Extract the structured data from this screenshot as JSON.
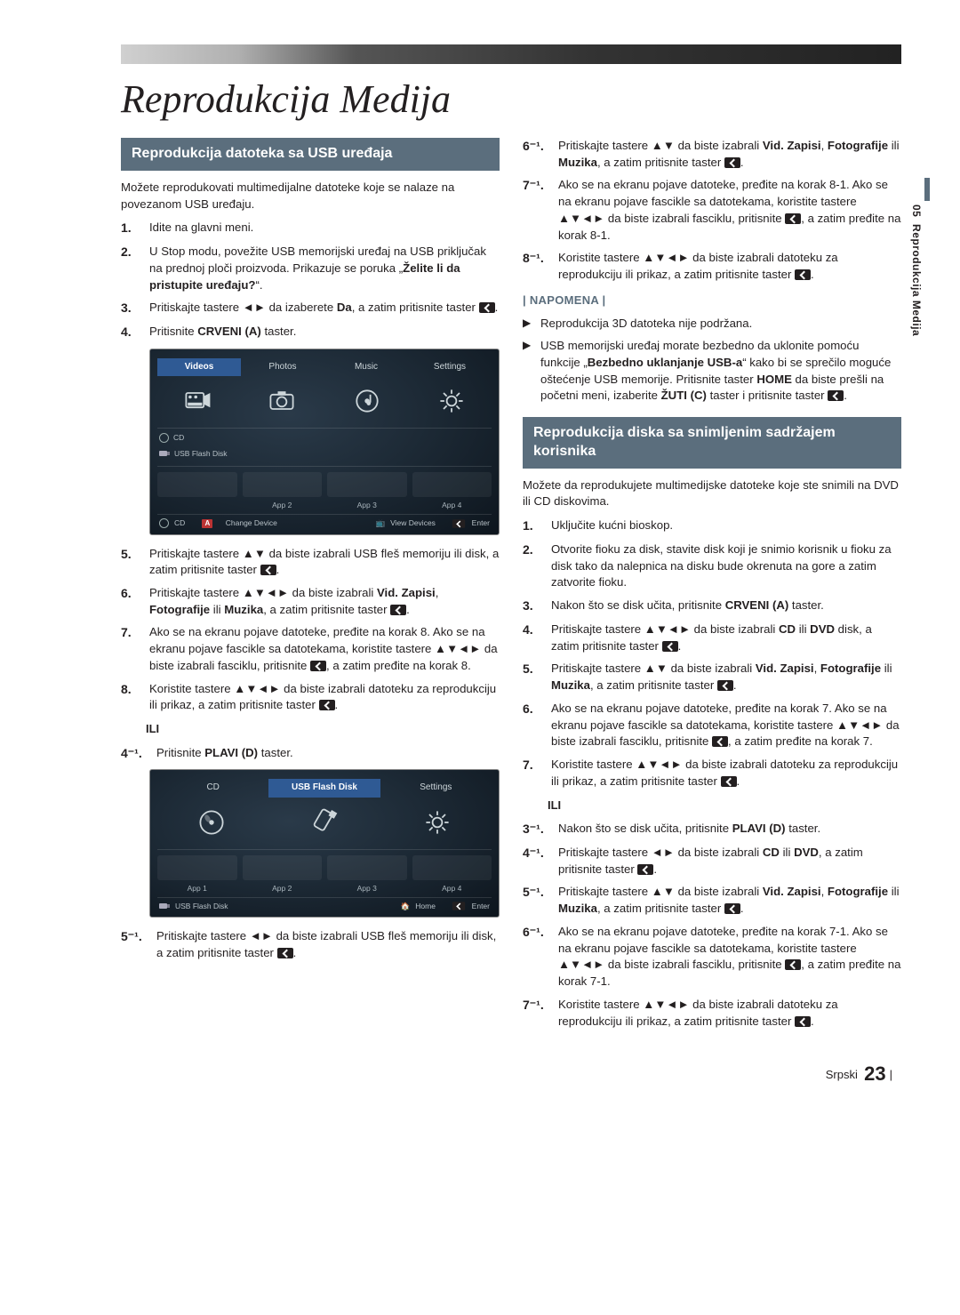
{
  "chapter_side": {
    "num": "05",
    "label": "Reprodukcija Medija"
  },
  "title": "Reprodukcija Medija",
  "footer": {
    "lang": "Srpski",
    "page": "23"
  },
  "sub1": {
    "heading": "Reprodukcija datoteka sa USB uređaja",
    "intro": "Možete reprodukovati multimedijalne datoteke koje se nalaze na povezanom USB uređaju.",
    "steps_a": [
      {
        "n": "1.",
        "t": "Idite na glavni meni."
      },
      {
        "n": "2.",
        "t_html": "U Stop modu, povežite USB memorijski uređaj na USB priključak na prednoj ploči proizvoda. Prikazuje se poruka „<b>Želite li da pristupite uređaju?</b>“."
      },
      {
        "n": "3.",
        "t_html": "Pritiskajte tastere ◄► da izaberete <b>Da</b>, a zatim pritisnite taster <span class='enter-icon'></span>."
      },
      {
        "n": "4.",
        "t_html": "Pritisnite <b>CRVENI (A)</b> taster."
      }
    ],
    "steps_b": [
      {
        "n": "5.",
        "t_html": "Pritiskajte tastere ▲▼ da biste izabrali USB fleš memoriju ili disk, a zatim pritisnite taster <span class='enter-icon'></span>."
      },
      {
        "n": "6.",
        "t_html": "Pritiskajte tastere ▲▼◄► da biste izabrali <b>Vid. Zapisi</b>, <b>Fotografije</b> ili <b>Muzika</b>, a zatim pritisnite taster <span class='enter-icon'></span>."
      },
      {
        "n": "7.",
        "t_html": "Ako se na ekranu pojave datoteke, pređite na korak 8. Ako se na ekranu pojave fascikle sa datotekama, koristite tastere ▲▼◄► da biste izabrali fasciklu, pritisnite <span class='enter-icon'></span>, a zatim pređite na korak 8."
      },
      {
        "n": "8.",
        "t_html": "Koristite tastere ▲▼◄► da biste izabrali datoteku za reprodukciju ili prikaz, a zatim pritisnite taster <span class='enter-icon'></span>."
      }
    ],
    "ili": "ILI",
    "steps_c": [
      {
        "n": "4⁻¹.",
        "t_html": "Pritisnite <b>PLAVI (D)</b> taster."
      }
    ],
    "steps_d": [
      {
        "n": "5⁻¹.",
        "t_html": "Pritiskajte tastere ◄► da biste izabrali USB fleš memoriju ili disk, a zatim pritisnite taster <span class='enter-icon'></span>."
      }
    ]
  },
  "sub1_cont": {
    "steps": [
      {
        "n": "6⁻¹.",
        "t_html": "Pritiskajte tastere ▲▼ da biste izabrali <b>Vid. Zapisi</b>, <b>Fotografije</b> ili <b>Muzika</b>, a zatim pritisnite taster <span class='enter-icon'></span>."
      },
      {
        "n": "7⁻¹.",
        "t_html": "Ako se na ekranu pojave datoteke, pređite na korak 8-1. Ako se na ekranu pojave fascikle sa datotekama, koristite tastere ▲▼◄► da biste izabrali fasciklu, pritisnite <span class='enter-icon'></span>, a zatim pređite na korak 8-1."
      },
      {
        "n": "8⁻¹.",
        "t_html": "Koristite tastere ▲▼◄► da biste izabrali datoteku za reprodukciju ili prikaz, a zatim pritisnite taster <span class='enter-icon'></span>."
      }
    ],
    "note_label": "| NAPOMENA |",
    "notes": [
      "Reprodukcija 3D datoteka nije podržana.",
      "USB memorijski uređaj morate bezbedno da uklonite pomoću funkcije „<b>Bezbedno uklanjanje USB-a</b>“ kako bi se sprečilo moguće oštećenje USB memorije. Pritisnite taster <b>HOME</b> da biste prešli na početni meni, izaberite <b>ŽUTI (C)</b> taster i pritisnite taster <span class='enter-icon'></span>."
    ]
  },
  "sub2": {
    "heading": "Reprodukcija diska sa snimljenim sadržajem korisnika",
    "intro": "Možete da reprodukujete multimedijske datoteke koje ste snimili na DVD ili CD diskovima.",
    "steps": [
      {
        "n": "1.",
        "t": "Uključite kućni bioskop."
      },
      {
        "n": "2.",
        "t": "Otvorite fioku za disk, stavite disk koji je snimio korisnik u fioku za disk tako da nalepnica na disku bude okrenuta na gore a zatim zatvorite fioku."
      },
      {
        "n": "3.",
        "t_html": "Nakon što se disk učita, pritisnite <b>CRVENI (A)</b> taster."
      },
      {
        "n": "4.",
        "t_html": "Pritiskajte tastere ▲▼◄► da biste izabrali <b>CD</b> ili <b>DVD</b> disk, a zatim pritisnite taster <span class='enter-icon'></span>."
      },
      {
        "n": "5.",
        "t_html": "Pritiskajte tastere ▲▼ da biste izabrali <b>Vid. Zapisi</b>, <b>Fotografije</b> ili <b>Muzika</b>, a zatim pritisnite taster <span class='enter-icon'></span>."
      },
      {
        "n": "6.",
        "t_html": "Ako se na ekranu pojave datoteke, pređite na korak 7. Ako se na ekranu pojave fascikle sa datotekama, koristite tastere ▲▼◄► da biste izabrali fasciklu, pritisnite <span class='enter-icon'></span>, a zatim pređite na korak 7."
      },
      {
        "n": "7.",
        "t_html": "Koristite tastere ▲▼◄► da biste izabrali datoteku za reprodukciju ili prikaz, a zatim pritisnite taster <span class='enter-icon'></span>."
      }
    ],
    "ili": "ILI",
    "steps_b": [
      {
        "n": "3⁻¹.",
        "t_html": "Nakon što se disk učita, pritisnite <b>PLAVI (D)</b> taster."
      },
      {
        "n": "4⁻¹.",
        "t_html": "Pritiskajte tastere ◄► da biste izabrali <b>CD</b> ili <b>DVD</b>, a zatim pritisnite taster <span class='enter-icon'></span>."
      },
      {
        "n": "5⁻¹.",
        "t_html": "Pritiskajte tastere ▲▼ da biste izabrali <b>Vid. Zapisi</b>, <b>Fotografije</b> ili <b>Muzika</b>, a zatim pritisnite taster <span class='enter-icon'></span>."
      },
      {
        "n": "6⁻¹.",
        "t_html": "Ako se na ekranu pojave datoteke, pređite na korak 7-1. Ako se na ekranu pojave fascikle sa datotekama, koristite tastere ▲▼◄► da biste izabrali fasciklu, pritisnite <span class='enter-icon'></span>, a zatim pređite na korak 7-1."
      },
      {
        "n": "7⁻¹.",
        "t_html": "Koristite tastere ▲▼◄► da biste izabrali datoteku za reprodukciju ili prikaz, a zatim pritisnite taster <span class='enter-icon'></span>."
      }
    ]
  },
  "ss1": {
    "tabs": [
      "Videos",
      "Photos",
      "Music",
      "Settings"
    ],
    "cd": "CD",
    "usb": "USB Flash Disk",
    "apps": [
      "",
      "App 2",
      "App 3",
      "App 4"
    ],
    "bottom_left": "CD",
    "bottom_mid": "Change Device",
    "bottom_r1": "View Devices",
    "bottom_r2": "Enter"
  },
  "ss2": {
    "tabs": [
      "CD",
      "USB Flash Disk",
      "Settings"
    ],
    "apps": [
      "App 1",
      "App 2",
      "App 3",
      "App 4"
    ],
    "bottom_left": "USB Flash Disk",
    "bottom_r1": "Home",
    "bottom_r2": "Enter"
  }
}
